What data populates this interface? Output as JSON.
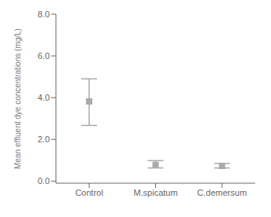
{
  "chart_data": {
    "type": "scatter",
    "categories": [
      "Control",
      "M.spicatum",
      "C.demersum"
    ],
    "values": [
      3.82,
      0.78,
      0.73
    ],
    "errors_upper": [
      1.08,
      0.2,
      0.12
    ],
    "errors_lower": [
      1.15,
      0.15,
      0.1
    ],
    "ylabel": "Mean effluent dye concentrations (mg/L)",
    "ylim": [
      -0.1,
      8.0
    ],
    "yticks": [
      {
        "value": 0.0,
        "label": "0.0"
      },
      {
        "value": 2.0,
        "label": "2.0"
      },
      {
        "value": 4.0,
        "label": "4.0"
      },
      {
        "value": 6.0,
        "label": "6.0"
      },
      {
        "value": 8.0,
        "label": "8.0"
      }
    ],
    "marker": "square",
    "color": "#aaaaaa",
    "grid": false
  }
}
